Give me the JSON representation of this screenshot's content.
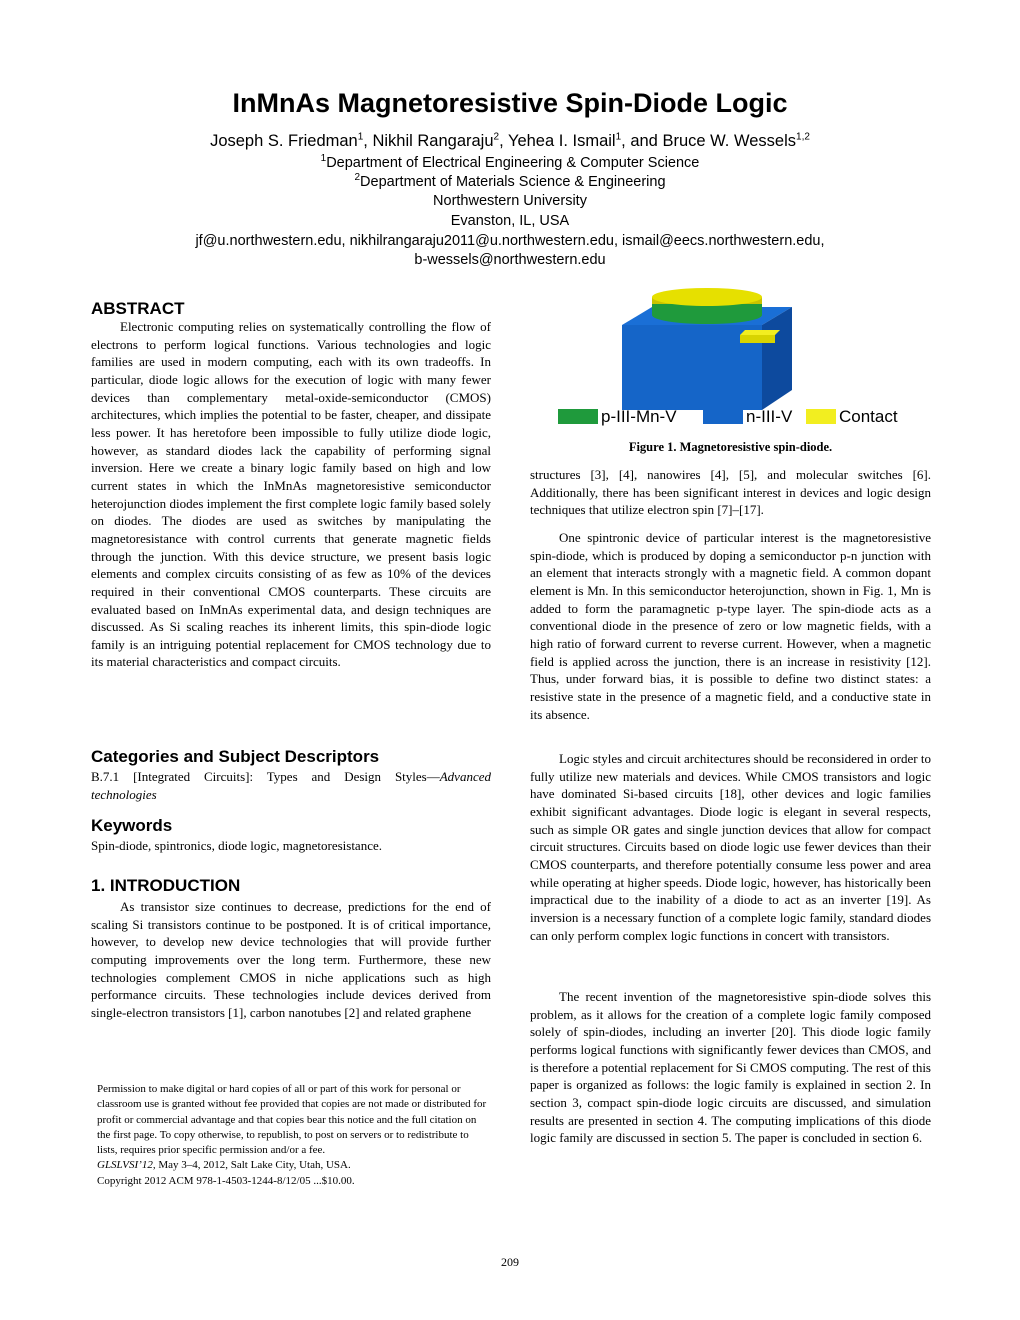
{
  "header": {
    "title": "InMnAs Magnetoresistive Spin-Diode Logic",
    "authors": [
      {
        "text": "Joseph S. Friedman",
        "sup": "1"
      },
      {
        "text": ", Nikhil Rangaraju",
        "sup": "2"
      },
      {
        "text": ", Yehea I. Ismail",
        "sup": "1"
      },
      {
        "text": ", and Bruce W. Wessels",
        "sup": "1,2"
      }
    ],
    "affiliations": [
      {
        "sup": "1",
        "text": "Department of Electrical Engineering & Computer Science"
      },
      {
        "sup": "2",
        "text": "Department of Materials Science & Engineering"
      }
    ],
    "university": "Northwestern University",
    "location": "Evanston, IL, USA",
    "emails": [
      "jf@u.northwestern.edu, nikhilrangaraju2011@u.northwestern.edu, ismail@eecs.northwestern.edu,",
      "b-wessels@northwestern.edu"
    ]
  },
  "abstract": {
    "heading": "ABSTRACT",
    "text": "Electronic computing relies on systematically controlling the flow of electrons to perform logical functions. Various technologies and logic families are used in modern computing, each with its own tradeoffs. In particular, diode logic allows for the execution of logic with many fewer devices than complementary metal-oxide-semiconductor (CMOS) architectures, which implies the potential to be faster, cheaper, and dissipate less power. It has heretofore been impossible to fully utilize diode logic, however, as standard diodes lack the capability of performing signal inversion. Here we create a binary logic family based on high and low current states in which the InMnAs magnetoresistive semiconductor heterojunction diodes implement the first complete logic family based solely on diodes. The diodes are used as switches by manipulating the magnetoresistance with control currents that generate magnetic fields through the junction. With this device structure, we present basis logic elements and complex circuits consisting of as few as 10% of the devices required in their conventional CMOS counterparts. These circuits are evaluated based on InMnAs experimental data, and design techniques are discussed. As Si scaling reaches its inherent limits, this spin-diode logic family is an intriguing potential replacement for CMOS technology due to its material characteristics and compact circuits."
  },
  "categories": {
    "heading": "Categories and Subject Descriptors",
    "text": "B.7.1 [Integrated Circuits]: Types and Design Styles—",
    "italic": "Advanced technologies"
  },
  "keywords": {
    "heading": "Keywords",
    "text": "Spin-diode, spintronics, diode logic, magnetoresistance."
  },
  "introduction": {
    "heading": "1.  INTRODUCTION",
    "paragraphs": [
      "As transistor size continues to decrease, predictions for the end of scaling Si transistors continue to be postponed. It is of critical importance, however, to develop new device technologies that will provide further computing improvements over the long term.  Furthermore, these new technologies complement CMOS in niche applications such as high performance circuits. These technologies include devices derived from single-electron transistors [1], carbon nanotubes [2] and related graphene",
      "structures [3], [4], nanowires [4], [5], and molecular switches [6]. Additionally, there has been significant interest in devices and logic design techniques that utilize electron spin [7]–[17].",
      "One spintronic device of particular interest is the magnetoresistive spin-diode, which is produced by doping a semiconductor p-n junction with an element that interacts strongly with a magnetic field. A common dopant element is Mn. In this semiconductor heterojunction, shown in Fig. 1, Mn is added to form the paramagnetic p-type layer. The spin-diode acts as a conventional diode in the presence of zero or low magnetic fields, with a high ratio of forward current to reverse current. However, when a magnetic field is applied across the junction, there is an increase in resistivity [12]. Thus, under forward bias, it is possible to define two distinct states: a resistive state in the presence of a magnetic field, and a conductive state in its absence.",
      "Logic styles and circuit architectures should be reconsidered in order to fully utilize new materials and devices. While CMOS transistors and logic have dominated Si-based circuits [18], other devices and logic families exhibit significant advantages. Diode logic is elegant in several respects, such as simple OR gates and single junction devices that allow for compact circuit structures. Circuits based on diode logic use fewer devices than their CMOS counterparts, and therefore potentially consume less power and area while operating at higher speeds. Diode logic, however, has historically been impractical due to the inability of a diode to act as an inverter [19]. As inversion is a necessary function of a complete logic family, standard diodes can only perform complex logic functions in concert with transistors.",
      "The recent invention of the magnetoresistive spin-diode solves this problem, as it allows for the creation of a complete logic family composed solely of spin-diodes, including an inverter [20]. This diode logic family performs logical functions with significantly fewer devices than CMOS, and is therefore a potential replacement for Si CMOS computing. The rest of this paper is organized as follows: the logic family is explained in section 2. In section 3, compact spin-diode logic circuits are discussed, and simulation results are presented in section 4. The computing implications of this diode logic family are discussed in section 5. The paper is concluded in section 6."
    ]
  },
  "figure": {
    "legend": [
      "p-III-Mn-V",
      "n-III-V",
      "Contact"
    ],
    "caption": "Figure 1. Magnetoresistive spin-diode."
  },
  "permission": {
    "text": "Permission to make digital or hard copies of all or part of this work for personal or classroom use is granted without fee provided that copies are not made or distributed for profit or commercial advantage and that copies bear this notice and the full citation on the first page. To copy otherwise, to republish, to post on servers or to redistribute to lists, requires prior specific permission and/or a fee.",
    "venue": "GLSLVSI’12,",
    "venue_rest": " May 3–4, 2012, Salt Lake City, Utah, USA.",
    "copyright": "Copyright 2012 ACM 978-1-4503-1244-8/12/05 ...$10.00."
  },
  "footer": {
    "page_number": "209"
  }
}
